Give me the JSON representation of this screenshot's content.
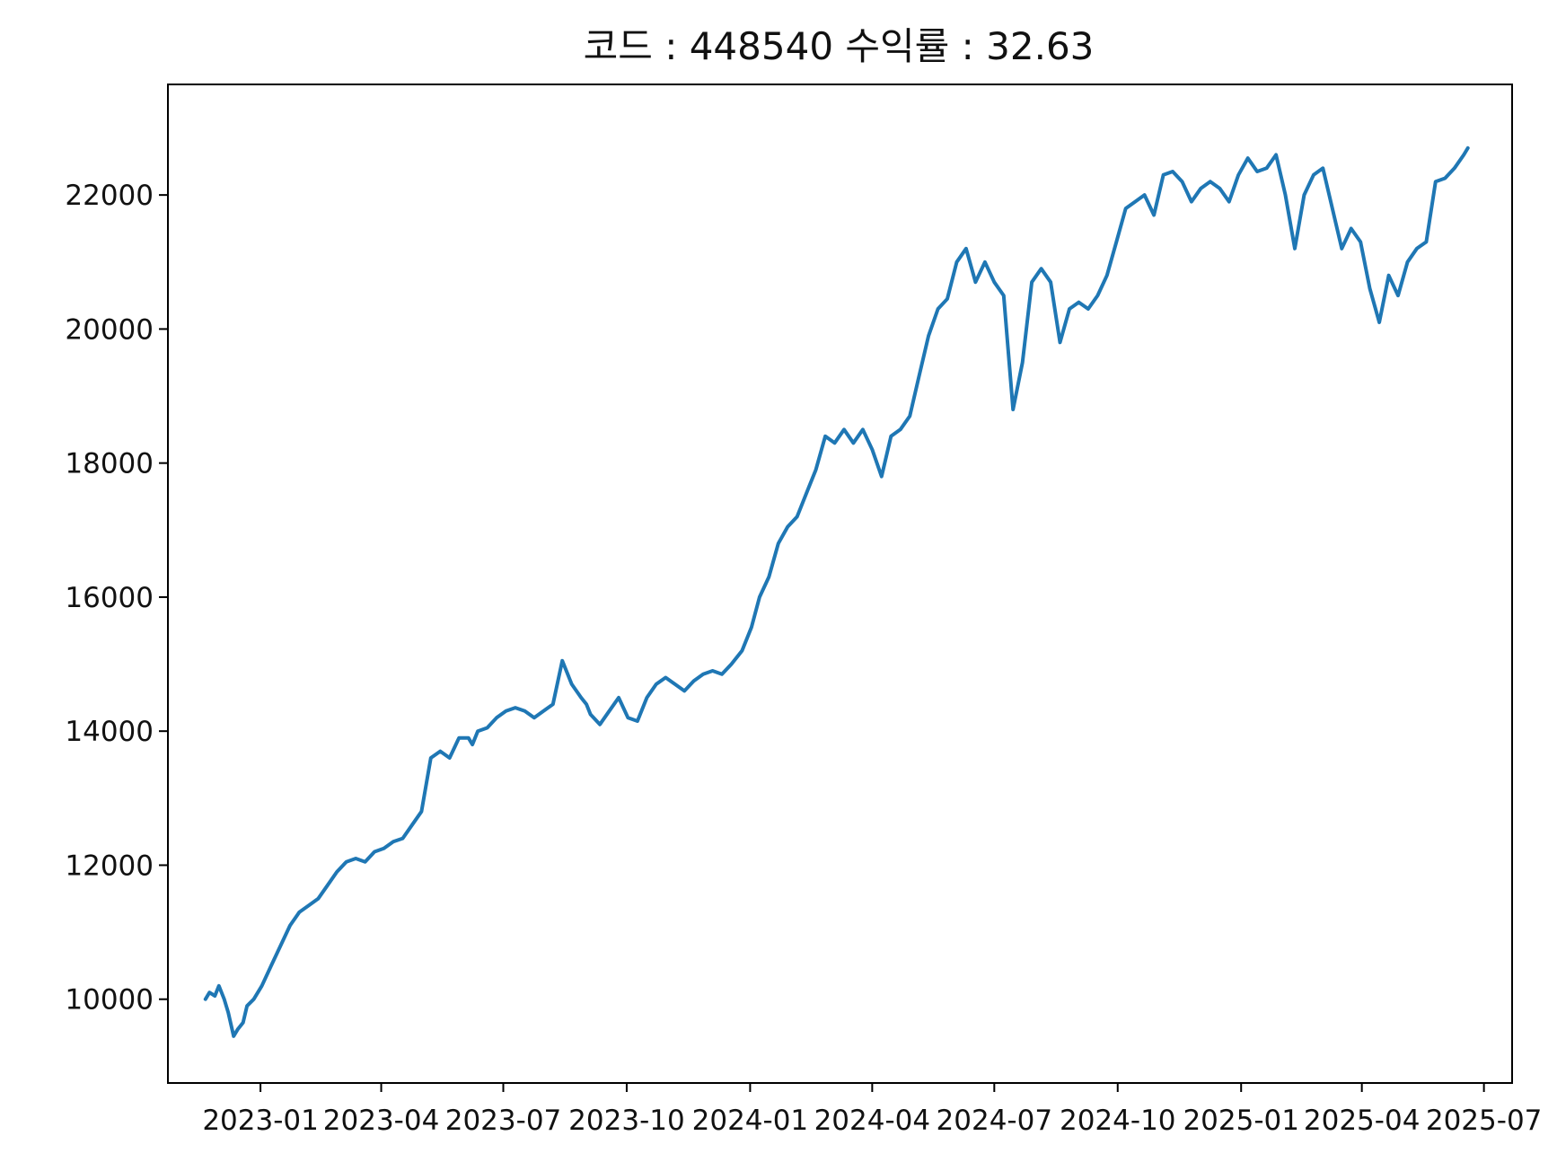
{
  "chart_data": {
    "type": "line",
    "title": "코드 : 448540 수익률 : 32.63",
    "xlabel": "",
    "ylabel": "",
    "x_ticks": [
      "2023-01",
      "2023-04",
      "2023-07",
      "2023-10",
      "2024-01",
      "2024-04",
      "2024-07",
      "2024-10",
      "2025-01",
      "2025-04",
      "2025-07"
    ],
    "y_ticks": [
      10000,
      12000,
      14000,
      16000,
      18000,
      20000,
      22000
    ],
    "xlim": [
      "2022-10-24",
      "2025-07-22"
    ],
    "ylim": [
      8750,
      23650
    ],
    "grid": false,
    "line_color": "#1f77b4",
    "series": [
      {
        "x": [
          "2022-11-21",
          "2022-11-24",
          "2022-11-28",
          "2022-12-01",
          "2022-12-05",
          "2022-12-08",
          "2022-12-12",
          "2022-12-15",
          "2022-12-19",
          "2022-12-22",
          "2022-12-27",
          "2023-01-02",
          "2023-01-09",
          "2023-01-16",
          "2023-01-23",
          "2023-01-30",
          "2023-02-06",
          "2023-02-13",
          "2023-02-20",
          "2023-02-27",
          "2023-03-06",
          "2023-03-13",
          "2023-03-20",
          "2023-03-27",
          "2023-04-03",
          "2023-04-10",
          "2023-04-17",
          "2023-04-24",
          "2023-05-01",
          "2023-05-08",
          "2023-05-15",
          "2023-05-22",
          "2023-05-29",
          "2023-06-05",
          "2023-06-08",
          "2023-06-12",
          "2023-06-19",
          "2023-06-26",
          "2023-07-03",
          "2023-07-10",
          "2023-07-17",
          "2023-07-24",
          "2023-07-31",
          "2023-08-07",
          "2023-08-14",
          "2023-08-21",
          "2023-08-28",
          "2023-09-01",
          "2023-09-04",
          "2023-09-11",
          "2023-09-18",
          "2023-09-25",
          "2023-10-02",
          "2023-10-09",
          "2023-10-16",
          "2023-10-23",
          "2023-10-30",
          "2023-11-06",
          "2023-11-13",
          "2023-11-20",
          "2023-11-27",
          "2023-12-04",
          "2023-12-11",
          "2023-12-18",
          "2023-12-26",
          "2024-01-02",
          "2024-01-08",
          "2024-01-15",
          "2024-01-22",
          "2024-01-29",
          "2024-02-05",
          "2024-02-13",
          "2024-02-19",
          "2024-02-26",
          "2024-03-04",
          "2024-03-11",
          "2024-03-18",
          "2024-03-25",
          "2024-04-01",
          "2024-04-08",
          "2024-04-15",
          "2024-04-22",
          "2024-04-29",
          "2024-05-06",
          "2024-05-13",
          "2024-05-20",
          "2024-05-27",
          "2024-06-03",
          "2024-06-10",
          "2024-06-17",
          "2024-06-24",
          "2024-07-01",
          "2024-07-08",
          "2024-07-15",
          "2024-07-22",
          "2024-07-29",
          "2024-08-05",
          "2024-08-12",
          "2024-08-19",
          "2024-08-26",
          "2024-09-02",
          "2024-09-09",
          "2024-09-16",
          "2024-09-23",
          "2024-09-30",
          "2024-10-07",
          "2024-10-14",
          "2024-10-21",
          "2024-10-28",
          "2024-11-04",
          "2024-11-11",
          "2024-11-18",
          "2024-11-25",
          "2024-12-02",
          "2024-12-09",
          "2024-12-16",
          "2024-12-23",
          "2024-12-30",
          "2025-01-06",
          "2025-01-13",
          "2025-01-20",
          "2025-01-27",
          "2025-02-03",
          "2025-02-10",
          "2025-02-17",
          "2025-02-24",
          "2025-03-03",
          "2025-03-10",
          "2025-03-17",
          "2025-03-24",
          "2025-03-31",
          "2025-04-07",
          "2025-04-14",
          "2025-04-21",
          "2025-04-28",
          "2025-05-05",
          "2025-05-12",
          "2025-05-19",
          "2025-05-26",
          "2025-06-02",
          "2025-06-09",
          "2025-06-16",
          "2025-06-19"
        ],
        "y": [
          10000,
          10100,
          10050,
          10200,
          10000,
          9800,
          9450,
          9550,
          9650,
          9900,
          10000,
          10200,
          10500,
          10800,
          11100,
          11300,
          11400,
          11500,
          11700,
          11900,
          12050,
          12100,
          12050,
          12200,
          12250,
          12350,
          12400,
          12600,
          12800,
          13600,
          13700,
          13600,
          13900,
          13900,
          13800,
          14000,
          14050,
          14200,
          14300,
          14350,
          14300,
          14200,
          14300,
          14400,
          15050,
          14700,
          14500,
          14400,
          14250,
          14100,
          14300,
          14500,
          14200,
          14150,
          14500,
          14700,
          14800,
          14700,
          14600,
          14750,
          14850,
          14900,
          14850,
          15000,
          15200,
          15550,
          16000,
          16300,
          16800,
          17050,
          17200,
          17600,
          17900,
          18400,
          18300,
          18500,
          18300,
          18500,
          18200,
          17800,
          18400,
          18500,
          18700,
          19300,
          19900,
          20300,
          20450,
          21000,
          21200,
          20700,
          21000,
          20700,
          20500,
          18800,
          19500,
          20700,
          20900,
          20700,
          19800,
          20300,
          20400,
          20300,
          20500,
          20800,
          21300,
          21800,
          21900,
          22000,
          21700,
          22300,
          22350,
          22200,
          21900,
          22100,
          22200,
          22100,
          21900,
          22300,
          22550,
          22350,
          22400,
          22600,
          22000,
          21200,
          22000,
          22300,
          22400,
          21800,
          21200,
          21500,
          21300,
          20600,
          20100,
          20800,
          20500,
          21000,
          21200,
          21300,
          22200,
          22250,
          22400,
          22600,
          22700
        ]
      }
    ]
  }
}
